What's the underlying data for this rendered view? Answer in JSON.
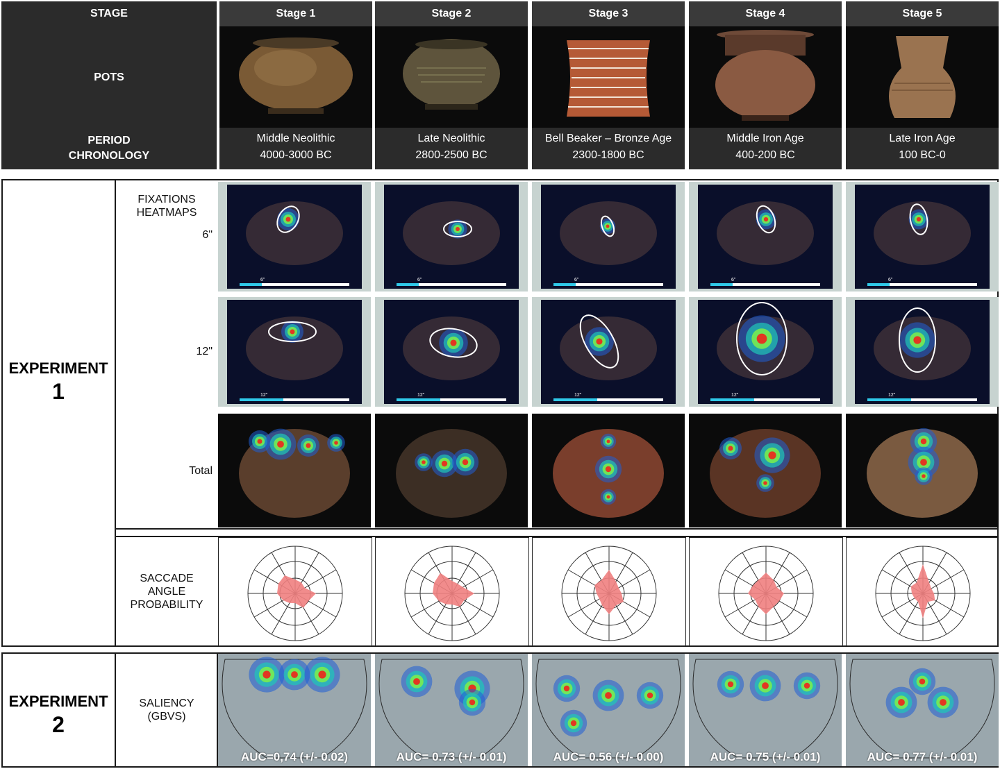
{
  "header": {
    "stage_label": "STAGE",
    "pots_label": "POTS",
    "period_label_line1": "PERIOD",
    "period_label_line2": "CHRONOLOGY"
  },
  "stages": [
    {
      "title": "Stage 1",
      "period": "Middle Neolithic",
      "chronology": "4000-3000 BC",
      "auc": "AUC=0,74 (+/- 0.02)"
    },
    {
      "title": "Stage 2",
      "period": "Late Neolithic",
      "chronology": "2800-2500 BC",
      "auc": "AUC= 0.73 (+/- 0.01)"
    },
    {
      "title": "Stage 3",
      "period": "Bell Beaker – Bronze Age",
      "chronology": "2300-1800 BC",
      "auc": "AUC= 0.56 (+/- 0.00)"
    },
    {
      "title": "Stage 4",
      "period": "Middle Iron Age",
      "chronology": "400-200 BC",
      "auc": "AUC= 0.75 (+/- 0.01)"
    },
    {
      "title": "Stage 5",
      "period": "Late Iron Age",
      "chronology": "100 BC-0",
      "auc": "AUC= 0.77 (+/- 0.01)"
    }
  ],
  "experiment1": {
    "label": "EXPERIMENT",
    "number": "1",
    "fixations_line1": "FIXATIONS",
    "fixations_line2": "HEATMAPS",
    "row_6": "6\"",
    "row_12": "12\"",
    "row_total": "Total",
    "progress_6": "6\"",
    "progress_12": "12\"",
    "progress_fraction_6": 0.2,
    "progress_fraction_12": 0.4,
    "saccade_line1": "SACCADE",
    "saccade_line2": "ANGLE",
    "saccade_line3": "PROBABILITY"
  },
  "experiment2": {
    "label": "EXPERIMENT",
    "number": "2",
    "saliency_line1": "SALIENCY",
    "saliency_line2": "(GBVS)"
  },
  "colors": {
    "header_bg": "#2b2b2b",
    "heat_frame": "#c7d3d0",
    "rose_fill": "#f08080",
    "progress": "#2fc8e8"
  }
}
